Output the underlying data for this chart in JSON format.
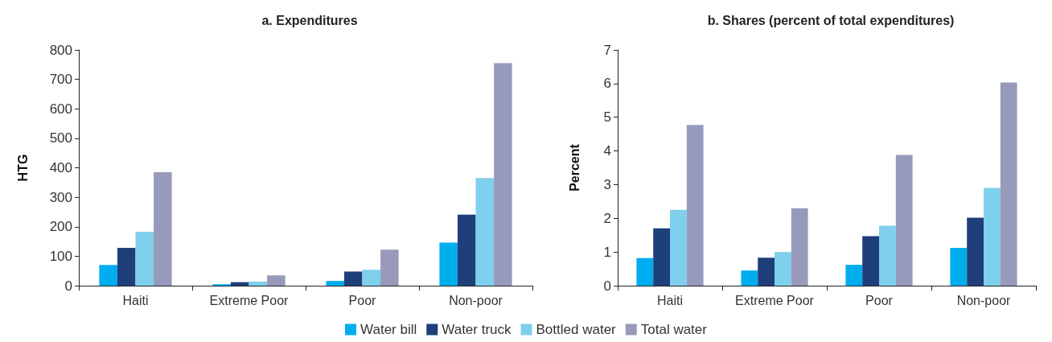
{
  "chart_data": [
    {
      "type": "bar",
      "title": "a. Expenditures",
      "ylabel": "HTG",
      "categories": [
        "Haiti",
        "Extreme Poor",
        "Poor",
        "Non-poor"
      ],
      "series": [
        {
          "name": "Water bill",
          "color": "#00adef",
          "values": [
            70,
            5,
            16,
            146
          ]
        },
        {
          "name": "Water truck",
          "color": "#1f3f7a",
          "values": [
            128,
            12,
            48,
            241
          ]
        },
        {
          "name": "Bottled water",
          "color": "#7fd0ec",
          "values": [
            183,
            14,
            54,
            365
          ]
        },
        {
          "name": "Total water",
          "color": "#989abb",
          "values": [
            385,
            35,
            122,
            755
          ]
        }
      ],
      "ylim": [
        0,
        800
      ],
      "yticks": [
        0,
        100,
        200,
        300,
        400,
        500,
        600,
        700,
        800
      ],
      "grid": false,
      "legend": "bottom"
    },
    {
      "type": "bar",
      "title": "b. Shares (percent of total expenditures)",
      "ylabel": "Percent",
      "categories": [
        "Haiti",
        "Extreme Poor",
        "Poor",
        "Non-poor"
      ],
      "series": [
        {
          "color": "#00adef",
          "values": [
            0.82,
            0.45,
            0.62,
            1.12
          ]
        },
        {
          "color": "#1f3f7a",
          "values": [
            1.7,
            0.83,
            1.47,
            2.02
          ]
        },
        {
          "color": "#7fd0ec",
          "values": [
            2.25,
            1.0,
            1.78,
            2.9
          ]
        },
        {
          "color": "#989abb",
          "values": [
            4.77,
            2.3,
            3.88,
            6.03
          ]
        }
      ],
      "ylim": [
        0,
        7
      ],
      "yticks": [
        0,
        1,
        2,
        3,
        4,
        5,
        6,
        7
      ],
      "grid": false
    }
  ]
}
